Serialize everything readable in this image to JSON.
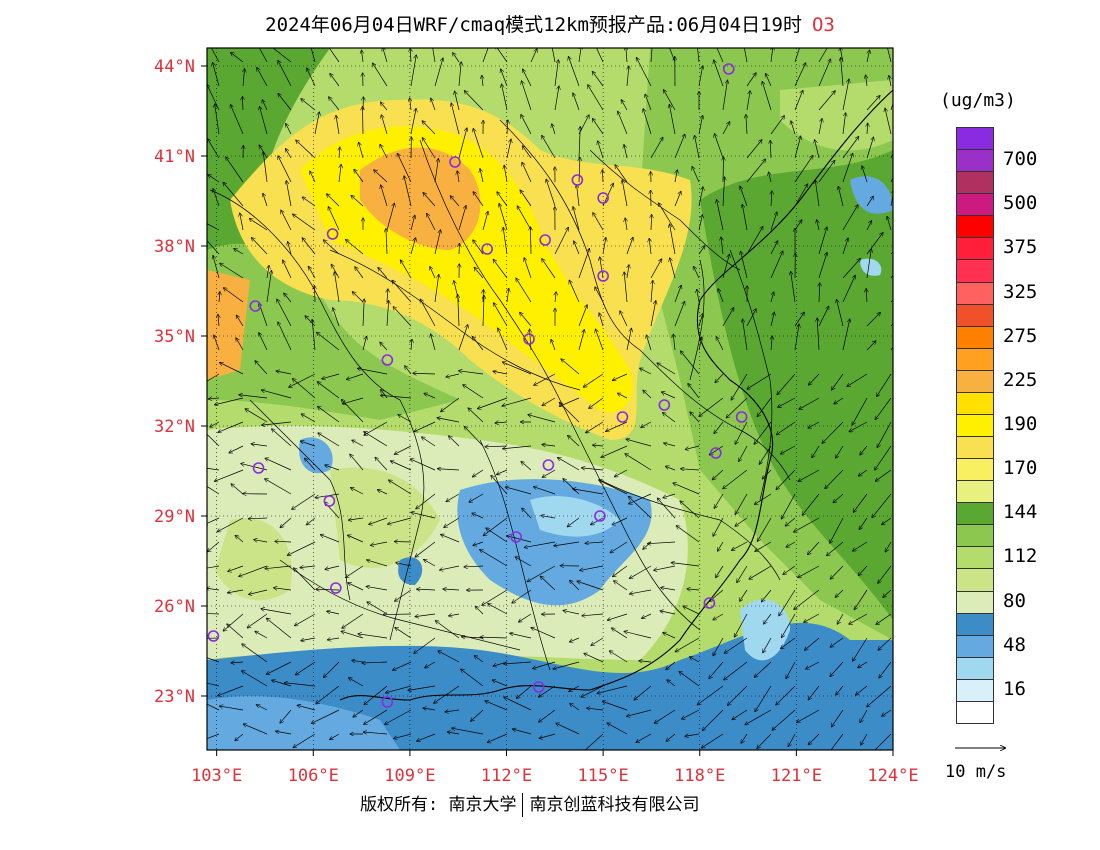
{
  "title": {
    "text": "2024年06月04日WRF/cmaq模式12km预报产品:06月04日19时",
    "pollutant": "O3"
  },
  "map": {
    "lon_range": [
      102.7,
      124.0
    ],
    "lat_range": [
      21.2,
      44.6
    ],
    "lon_ticks": [
      "103°E",
      "106°E",
      "109°E",
      "112°E",
      "115°E",
      "118°E",
      "121°E",
      "124°E"
    ],
    "lon_values": [
      103,
      106,
      109,
      112,
      115,
      118,
      121,
      124
    ],
    "lat_ticks": [
      "44°N",
      "41°N",
      "38°N",
      "35°N",
      "32°N",
      "29°N",
      "26°N",
      "23°N"
    ],
    "lat_values": [
      44,
      41,
      38,
      35,
      32,
      29,
      26,
      23
    ],
    "tick_color": "#e0303a",
    "stations": [
      [
        118.9,
        43.9
      ],
      [
        110.4,
        40.8
      ],
      [
        114.2,
        40.2
      ],
      [
        115.0,
        39.6
      ],
      [
        106.6,
        38.4
      ],
      [
        111.4,
        37.9
      ],
      [
        113.2,
        38.2
      ],
      [
        115.0,
        37.0
      ],
      [
        104.2,
        36.0
      ],
      [
        112.7,
        34.9
      ],
      [
        108.3,
        34.2
      ],
      [
        115.6,
        32.3
      ],
      [
        116.9,
        32.7
      ],
      [
        119.3,
        32.3
      ],
      [
        118.5,
        31.1
      ],
      [
        104.3,
        30.6
      ],
      [
        113.3,
        30.7
      ],
      [
        106.5,
        29.5
      ],
      [
        114.9,
        29.0
      ],
      [
        112.3,
        28.3
      ],
      [
        106.7,
        26.6
      ],
      [
        118.3,
        26.1
      ],
      [
        102.9,
        25.0
      ],
      [
        108.3,
        22.8
      ],
      [
        113.0,
        23.3
      ]
    ]
  },
  "legend": {
    "unit": "(ug/m3)",
    "bins_top_to_bottom": [
      {
        "color": "#8a2be2",
        "label": ""
      },
      {
        "color": "#9b30c8",
        "label": "700"
      },
      {
        "color": "#b03060",
        "label": ""
      },
      {
        "color": "#cc1a80",
        "label": "500"
      },
      {
        "color": "#ff0000",
        "label": ""
      },
      {
        "color": "#ff1f3a",
        "label": "375"
      },
      {
        "color": "#ff3050",
        "label": ""
      },
      {
        "color": "#ff6060",
        "label": "325"
      },
      {
        "color": "#f0502a",
        "label": ""
      },
      {
        "color": "#ff7f00",
        "label": "275"
      },
      {
        "color": "#ffa020",
        "label": ""
      },
      {
        "color": "#f8b040",
        "label": "225"
      },
      {
        "color": "#ffe000",
        "label": ""
      },
      {
        "color": "#fff000",
        "label": "190"
      },
      {
        "color": "#f8e050",
        "label": ""
      },
      {
        "color": "#f8f060",
        "label": "170"
      },
      {
        "color": "#e8f080",
        "label": ""
      },
      {
        "color": "#5aa832",
        "label": "144"
      },
      {
        "color": "#8cc850",
        "label": ""
      },
      {
        "color": "#b4dc6c",
        "label": "112"
      },
      {
        "color": "#cce488",
        "label": ""
      },
      {
        "color": "#dcecb8",
        "label": "80"
      },
      {
        "color": "#3c8cc8",
        "label": ""
      },
      {
        "color": "#64aae0",
        "label": "48"
      },
      {
        "color": "#a0d8f0",
        "label": ""
      },
      {
        "color": "#d8f0fa",
        "label": "16"
      },
      {
        "color": "#ffffff",
        "label": ""
      }
    ]
  },
  "wind_reference": {
    "label": "10 m/s"
  },
  "footer": {
    "copyright": "版权所有: 南京大学",
    "company": "南京创蓝科技有限公司"
  }
}
